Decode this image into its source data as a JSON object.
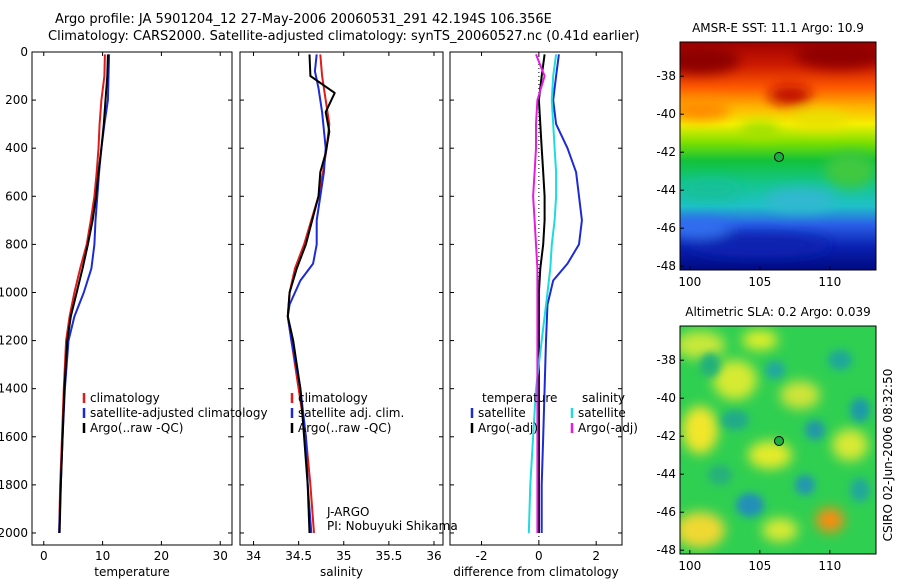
{
  "title": {
    "line1": "Argo profile: JA 5901204_12 27-May-2006 20060531_291 42.194S 106.356E",
    "line2": "Climatology: CARS2000. Satellite-adjusted climatology: synTS_20060527.nc (0.41d earlier)"
  },
  "side_text": "CSIRO 02-Jun-2006 08:32:50",
  "credit": {
    "line1": "J-ARGO",
    "line2": "PI: Nobuyuki Shikama"
  },
  "colors": {
    "climatology": "#e01b1b",
    "satellite": "#1c2bd6",
    "argo": "#000000",
    "argo_adj_salinity": "#e21ce0",
    "satellite_salinity": "#1cdcdc"
  },
  "chart_data": [
    {
      "type": "line",
      "xlabel": "temperature",
      "ylabel": "",
      "xlim": [
        -2,
        32
      ],
      "ylim": [
        2050,
        0
      ],
      "y_inverted": true,
      "x_ticks": [
        0,
        10,
        20,
        30
      ],
      "y_ticks": [
        0,
        200,
        400,
        600,
        800,
        1000,
        1200,
        1400,
        1600,
        1800,
        2000
      ],
      "legend": {
        "position": "lower-right",
        "entries": [
          "climatology",
          "satellite-adjusted climatology",
          "Argo(..raw -QC)"
        ]
      },
      "series": [
        {
          "name": "climatology",
          "color": "#e01b1b",
          "points": [
            [
              10.4,
              10
            ],
            [
              10.3,
              100
            ],
            [
              9.8,
              200
            ],
            [
              9.5,
              300
            ],
            [
              9.3,
              400
            ],
            [
              9.0,
              500
            ],
            [
              8.6,
              600
            ],
            [
              8.0,
              700
            ],
            [
              7.3,
              800
            ],
            [
              6.2,
              900
            ],
            [
              5.2,
              1000
            ],
            [
              4.4,
              1100
            ],
            [
              3.8,
              1200
            ],
            [
              3.4,
              1400
            ],
            [
              3.1,
              1600
            ],
            [
              2.8,
              1800
            ],
            [
              2.6,
              2000
            ]
          ]
        },
        {
          "name": "satellite-adjusted climatology",
          "color": "#1c2bd6",
          "points": [
            [
              11.1,
              10
            ],
            [
              11.0,
              100
            ],
            [
              10.9,
              200
            ],
            [
              10.3,
              300
            ],
            [
              9.8,
              400
            ],
            [
              9.4,
              500
            ],
            [
              9.1,
              600
            ],
            [
              8.8,
              700
            ],
            [
              8.6,
              800
            ],
            [
              8.1,
              900
            ],
            [
              6.8,
              1000
            ],
            [
              5.2,
              1100
            ],
            [
              4.2,
              1200
            ],
            [
              3.6,
              1400
            ],
            [
              3.2,
              1600
            ],
            [
              2.9,
              1800
            ],
            [
              2.6,
              2000
            ]
          ]
        },
        {
          "name": "Argo(..raw -QC)",
          "color": "#000000",
          "points": [
            [
              10.9,
              10
            ],
            [
              10.8,
              100
            ],
            [
              10.5,
              200
            ],
            [
              10.2,
              300
            ],
            [
              9.8,
              400
            ],
            [
              9.3,
              500
            ],
            [
              8.9,
              600
            ],
            [
              8.3,
              700
            ],
            [
              7.5,
              800
            ],
            [
              6.6,
              900
            ],
            [
              5.6,
              1000
            ],
            [
              4.6,
              1100
            ],
            [
              4.0,
              1200
            ],
            [
              3.5,
              1400
            ],
            [
              3.2,
              1600
            ],
            [
              2.9,
              1800
            ],
            [
              2.7,
              2000
            ]
          ]
        }
      ]
    },
    {
      "type": "line",
      "xlabel": "salinity",
      "ylabel": "",
      "xlim": [
        33.85,
        36.1
      ],
      "ylim": [
        2050,
        0
      ],
      "y_inverted": true,
      "x_ticks": [
        34,
        34.5,
        35,
        35.5,
        36
      ],
      "y_ticks": [
        0,
        200,
        400,
        600,
        800,
        1000,
        1200,
        1400,
        1600,
        1800,
        2000
      ],
      "legend": {
        "position": "lower-right",
        "entries": [
          "climatology",
          "satellite adj. clim.",
          "Argo(..raw -QC)"
        ]
      },
      "series": [
        {
          "name": "climatology",
          "color": "#e01b1b",
          "points": [
            [
              34.74,
              10
            ],
            [
              34.76,
              100
            ],
            [
              34.8,
              200
            ],
            [
              34.84,
              300
            ],
            [
              34.81,
              400
            ],
            [
              34.77,
              500
            ],
            [
              34.72,
              600
            ],
            [
              34.64,
              700
            ],
            [
              34.56,
              800
            ],
            [
              34.46,
              900
            ],
            [
              34.4,
              1000
            ],
            [
              34.38,
              1100
            ],
            [
              34.42,
              1200
            ],
            [
              34.5,
              1400
            ],
            [
              34.58,
              1600
            ],
            [
              34.63,
              1800
            ],
            [
              34.67,
              2000
            ]
          ]
        },
        {
          "name": "satellite adj. clim.",
          "color": "#1c2bd6",
          "points": [
            [
              34.7,
              10
            ],
            [
              34.68,
              80
            ],
            [
              34.72,
              150
            ],
            [
              34.76,
              250
            ],
            [
              34.8,
              400
            ],
            [
              34.78,
              500
            ],
            [
              34.74,
              600
            ],
            [
              34.7,
              700
            ],
            [
              34.7,
              800
            ],
            [
              34.66,
              880
            ],
            [
              34.52,
              950
            ],
            [
              34.4,
              1050
            ],
            [
              34.38,
              1100
            ],
            [
              34.42,
              1200
            ],
            [
              34.52,
              1400
            ],
            [
              34.58,
              1600
            ],
            [
              34.6,
              1800
            ],
            [
              34.64,
              2000
            ]
          ]
        },
        {
          "name": "Argo(..raw -QC)",
          "color": "#000000",
          "points": [
            [
              34.62,
              10
            ],
            [
              34.63,
              100
            ],
            [
              34.9,
              170
            ],
            [
              34.8,
              250
            ],
            [
              34.84,
              330
            ],
            [
              34.8,
              420
            ],
            [
              34.74,
              500
            ],
            [
              34.72,
              600
            ],
            [
              34.65,
              700
            ],
            [
              34.58,
              800
            ],
            [
              34.48,
              900
            ],
            [
              34.4,
              1000
            ],
            [
              34.38,
              1100
            ],
            [
              34.44,
              1200
            ],
            [
              34.52,
              1400
            ],
            [
              34.56,
              1600
            ],
            [
              34.6,
              1800
            ],
            [
              34.62,
              2000
            ]
          ]
        }
      ]
    },
    {
      "type": "line",
      "xlabel": "difference from climatology",
      "ylabel": "",
      "xlim": [
        -3.1,
        2.9
      ],
      "ylim": [
        2050,
        0
      ],
      "y_inverted": true,
      "x_ticks": [
        -2,
        0,
        2
      ],
      "y_ticks": [
        0,
        200,
        400,
        600,
        800,
        1000,
        1200,
        1400,
        1600,
        1800,
        2000
      ],
      "legend": {
        "position": "lower-right",
        "temperature_header": "temperature",
        "salinity_header": "salinity",
        "entries": [
          "satellite",
          "Argo(-adj)",
          "satellite",
          "Argo(-adj)"
        ]
      },
      "series": [
        {
          "name": "satellite",
          "group": "temperature",
          "color": "#1c2bd6",
          "points": [
            [
              0.7,
              10
            ],
            [
              0.6,
              100
            ],
            [
              0.5,
              200
            ],
            [
              0.6,
              300
            ],
            [
              1.0,
              400
            ],
            [
              1.3,
              500
            ],
            [
              1.4,
              600
            ],
            [
              1.5,
              700
            ],
            [
              1.4,
              800
            ],
            [
              1.0,
              880
            ],
            [
              0.5,
              950
            ],
            [
              0.3,
              1050
            ],
            [
              0.25,
              1200
            ],
            [
              0.2,
              1400
            ],
            [
              0.15,
              1600
            ],
            [
              0.1,
              1800
            ],
            [
              0.1,
              2000
            ]
          ]
        },
        {
          "name": "Argo(-adj)",
          "group": "temperature",
          "color": "#000000",
          "points": [
            [
              0.2,
              10
            ],
            [
              0.1,
              100
            ],
            [
              0.0,
              200
            ],
            [
              0.05,
              300
            ],
            [
              0.1,
              400
            ],
            [
              0.15,
              500
            ],
            [
              0.2,
              600
            ],
            [
              0.2,
              700
            ],
            [
              0.15,
              800
            ],
            [
              0.05,
              900
            ],
            [
              0.0,
              1000
            ],
            [
              0.0,
              1200
            ],
            [
              0.0,
              1400
            ],
            [
              0.0,
              1600
            ],
            [
              0.0,
              1800
            ],
            [
              0.0,
              2000
            ]
          ]
        },
        {
          "name": "satellite",
          "group": "salinity",
          "color": "#1cdcdc",
          "points": [
            [
              0.6,
              10
            ],
            [
              0.5,
              100
            ],
            [
              0.45,
              200
            ],
            [
              0.5,
              300
            ],
            [
              0.55,
              400
            ],
            [
              0.6,
              500
            ],
            [
              0.6,
              600
            ],
            [
              0.55,
              700
            ],
            [
              0.45,
              800
            ],
            [
              0.4,
              900
            ],
            [
              0.3,
              1000
            ],
            [
              0.1,
              1200
            ],
            [
              -0.1,
              1400
            ],
            [
              -0.2,
              1600
            ],
            [
              -0.3,
              1800
            ],
            [
              -0.35,
              2000
            ]
          ]
        },
        {
          "name": "Argo(-adj)",
          "group": "salinity",
          "color": "#e21ce0",
          "points": [
            [
              -0.1,
              10
            ],
            [
              0.2,
              100
            ],
            [
              -0.05,
              200
            ],
            [
              -0.1,
              300
            ],
            [
              -0.1,
              400
            ],
            [
              -0.15,
              500
            ],
            [
              -0.2,
              600
            ],
            [
              -0.15,
              700
            ],
            [
              -0.1,
              800
            ],
            [
              -0.05,
              900
            ],
            [
              -0.05,
              1000
            ],
            [
              -0.05,
              1200
            ],
            [
              -0.05,
              1400
            ],
            [
              -0.05,
              1600
            ],
            [
              -0.05,
              1800
            ],
            [
              -0.05,
              2000
            ]
          ]
        }
      ]
    },
    {
      "type": "heatmap",
      "title": "AMSR-E SST: 11.1 Argo: 10.9",
      "xlim": [
        99.3,
        113.3
      ],
      "ylim": [
        -48.2,
        -36.2
      ],
      "x_ticks": [
        100,
        105,
        110
      ],
      "y_ticks": [
        -38,
        -40,
        -42,
        -44,
        -46,
        -48
      ],
      "colormap": "jet",
      "marker": {
        "lon": 106.356,
        "lat": -42.194
      }
    },
    {
      "type": "heatmap",
      "title": "Altimetric SLA: 0.2 Argo: 0.039",
      "xlim": [
        99.3,
        113.3
      ],
      "ylim": [
        -48.2,
        -36.2
      ],
      "x_ticks": [
        100,
        105,
        110
      ],
      "y_ticks": [
        -38,
        -40,
        -42,
        -44,
        -46,
        -48
      ],
      "colormap": "jet",
      "marker": {
        "lon": 106.356,
        "lat": -42.194
      }
    }
  ]
}
